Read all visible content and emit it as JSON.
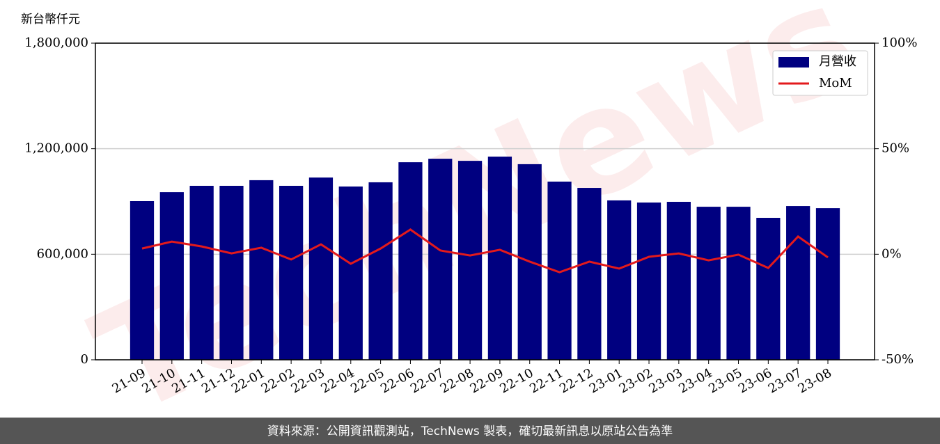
{
  "chart_data": {
    "type": "bar-line",
    "y_label": "新台幣仟元",
    "categories": [
      "21-09",
      "21-10",
      "21-11",
      "21-12",
      "22-01",
      "22-02",
      "22-03",
      "22-04",
      "22-05",
      "22-06",
      "22-07",
      "22-08",
      "22-09",
      "22-10",
      "22-11",
      "22-12",
      "23-01",
      "23-02",
      "23-03",
      "23-04",
      "23-05",
      "23-06",
      "23-07",
      "23-08"
    ],
    "series": [
      {
        "name": "月營收",
        "type": "bar",
        "color": "#000080",
        "axis": "y",
        "values": [
          902000,
          953000,
          989000,
          989000,
          1021000,
          989000,
          1036000,
          985000,
          1009000,
          1123000,
          1143000,
          1131000,
          1155000,
          1112000,
          1013000,
          977000,
          906000,
          894000,
          898000,
          870000,
          870000,
          807000,
          874000,
          862000
        ]
      },
      {
        "name": "MoM",
        "type": "line",
        "color": "#e31a1c",
        "axis": "y2",
        "values": [
          2.7,
          6.0,
          3.7,
          0.4,
          3.1,
          -2.5,
          4.7,
          -4.5,
          2.7,
          11.7,
          1.8,
          -0.6,
          2.1,
          -3.5,
          -8.5,
          -3.5,
          -6.8,
          -1.2,
          0.4,
          -2.9,
          -0.2,
          -6.5,
          8.4,
          -1.5
        ]
      }
    ],
    "ylim": [
      0,
      1800000
    ],
    "yticks": [
      0,
      {
        "value": 600000,
        "label": "600,000"
      },
      {
        "value": 1200000,
        "label": "1,200,000"
      },
      {
        "value": 1800000,
        "label": "1,800,000"
      }
    ],
    "y2lim": [
      -50,
      100
    ],
    "y2ticks": [
      {
        "value": -50,
        "label": "-50%"
      },
      {
        "value": 0,
        "label": "0%"
      },
      {
        "value": 50,
        "label": "50%"
      },
      {
        "value": 100,
        "label": "100%"
      }
    ],
    "grid": true,
    "legend": "upper right",
    "watermark": "TechNews",
    "footer": "資料來源：公開資訊觀測站，TechNews 製表，確切最新訊息以原站公告為準"
  }
}
